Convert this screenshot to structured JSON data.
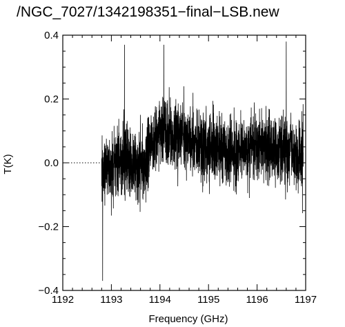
{
  "chart_data": {
    "type": "line",
    "title": "/NGC_7027/1342198351−final−LSB.new",
    "xlabel": "Frequency (GHz)",
    "ylabel": "T(K)",
    "xlim": [
      1192,
      1197
    ],
    "ylim": [
      -0.4,
      0.4
    ],
    "x_ticks": [
      1192,
      1193,
      1194,
      1195,
      1196,
      1197
    ],
    "x_tick_labels": [
      "1192",
      "1193",
      "1194",
      "1195",
      "1196",
      "1197"
    ],
    "y_ticks": [
      -0.4,
      -0.2,
      0.0,
      0.2,
      0.4
    ],
    "y_tick_labels": [
      "−0.4",
      "−0.2",
      "0.0",
      "0.2",
      "0.4"
    ],
    "grid": false,
    "colors": {
      "line": "#000000",
      "reference_line": "#000000",
      "background": "#ffffff"
    },
    "series": [
      {
        "style": "dotted",
        "x": [
          1192.0,
          1192.8
        ],
        "y": [
          0.0,
          0.0
        ]
      },
      {
        "style": "solid",
        "x_start": 1192.8,
        "x_end": 1196.95,
        "baseline_x": [
          1192.8,
          1193.2,
          1193.6,
          1194.0,
          1194.5,
          1195.0,
          1195.5,
          1196.0,
          1196.5,
          1196.95
        ],
        "baseline_y": [
          -0.02,
          0.01,
          -0.01,
          0.1,
          0.08,
          0.05,
          0.02,
          0.06,
          0.04,
          0.02
        ],
        "noise_amplitude": 0.08,
        "extremes_x": [
          1192.82,
          1193.27,
          1194.08,
          1196.6
        ],
        "extremes_y": [
          -0.37,
          0.37,
          0.37,
          0.38
        ]
      }
    ]
  }
}
